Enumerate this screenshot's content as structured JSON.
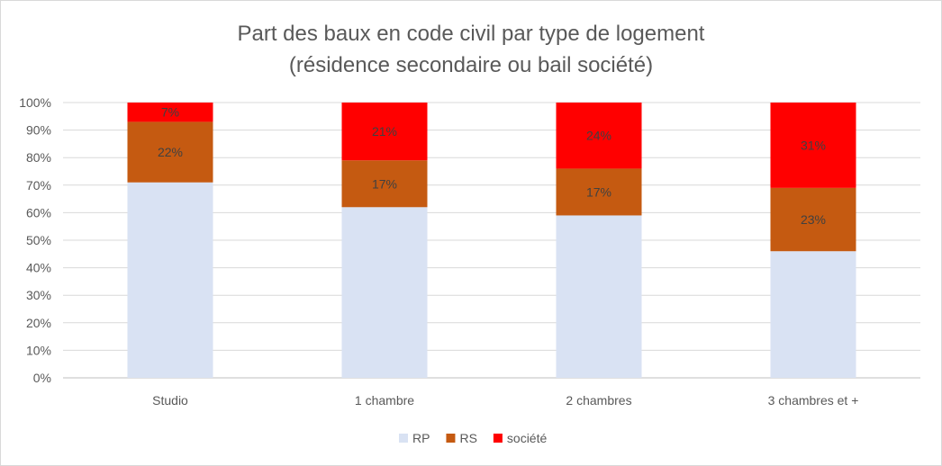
{
  "chart_data": {
    "type": "bar",
    "stacked": "percent",
    "title": "Part des baux en code civil par type de logement",
    "subtitle": "(résidence secondaire ou bail société)",
    "categories": [
      "Studio",
      "1 chambre",
      "2 chambres",
      "3 chambres et +"
    ],
    "series": [
      {
        "name": "RP",
        "color": "#d9e2f3",
        "values": [
          71,
          62,
          59,
          46
        ],
        "labels": [
          null,
          null,
          null,
          null
        ]
      },
      {
        "name": "RS",
        "color": "#c55a11",
        "values": [
          22,
          17,
          17,
          23
        ],
        "labels": [
          "22%",
          "17%",
          "17%",
          "23%"
        ]
      },
      {
        "name": "société",
        "color": "#ff0000",
        "values": [
          7,
          21,
          24,
          31
        ],
        "labels": [
          "7%",
          "21%",
          "24%",
          "31%"
        ]
      }
    ],
    "ylim": [
      0,
      100
    ],
    "yticks": [
      "0%",
      "10%",
      "20%",
      "30%",
      "40%",
      "50%",
      "60%",
      "70%",
      "80%",
      "90%",
      "100%"
    ],
    "grid": true,
    "legend_position": "bottom"
  }
}
